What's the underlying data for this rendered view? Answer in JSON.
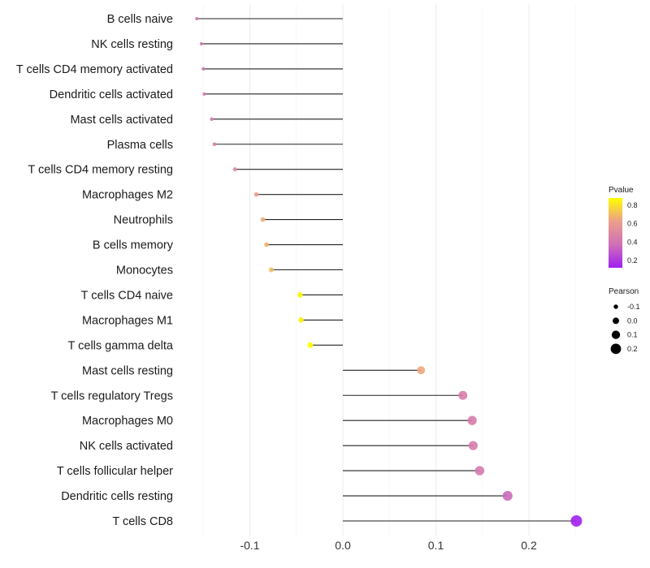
{
  "chart_data": {
    "type": "lollipop",
    "xlabel": "",
    "ylabel": "",
    "xlim": [
      -0.17,
      0.26
    ],
    "xticks": [
      -0.1,
      0.0,
      0.1,
      0.2
    ],
    "xtick_labels": [
      "-0.1",
      "0.0",
      "0.1",
      "0.2"
    ],
    "grid": true,
    "categories": [
      "B cells naive",
      "NK cells resting",
      "T cells CD4 memory activated",
      "Dendritic cells activated",
      "Mast cells activated",
      "Plasma cells",
      "T cells CD4 memory resting",
      "Macrophages M2",
      "Neutrophils",
      "B cells memory",
      "Monocytes",
      "T cells CD4 naive",
      "Macrophages M1",
      "T cells gamma delta",
      "Mast cells resting",
      "T cells regulatory  Tregs ",
      "Macrophages M0",
      "NK cells activated",
      "T cells follicular helper",
      "Dendritic cells resting",
      "T cells CD8"
    ],
    "pearson": [
      -0.157,
      -0.152,
      -0.15,
      -0.149,
      -0.141,
      -0.138,
      -0.116,
      -0.093,
      -0.086,
      -0.082,
      -0.077,
      -0.046,
      -0.045,
      -0.035,
      0.084,
      0.129,
      0.139,
      0.14,
      0.147,
      0.177,
      0.251
    ],
    "pvalue": [
      0.4,
      0.4,
      0.4,
      0.42,
      0.43,
      0.44,
      0.52,
      0.62,
      0.66,
      0.68,
      0.7,
      0.85,
      0.84,
      0.88,
      0.65,
      0.45,
      0.44,
      0.44,
      0.42,
      0.35,
      0.12
    ],
    "legend": {
      "color_title": "Pvalue",
      "color_ticks": [
        "0.8",
        "0.6",
        "0.4",
        "0.2"
      ],
      "color_tick_values": [
        0.8,
        0.6,
        0.4,
        0.2
      ],
      "color_range": [
        0.12,
        0.88
      ],
      "colors": [
        "#a020f0",
        "#d070b8",
        "#ec9f8a",
        "#ffff00"
      ],
      "size_title": "Pearson",
      "size_labels": [
        "-0.1",
        "0.0",
        "0.1",
        "0.2"
      ],
      "size_values": [
        -0.1,
        0.0,
        0.1,
        0.2
      ],
      "placement": "right"
    }
  }
}
